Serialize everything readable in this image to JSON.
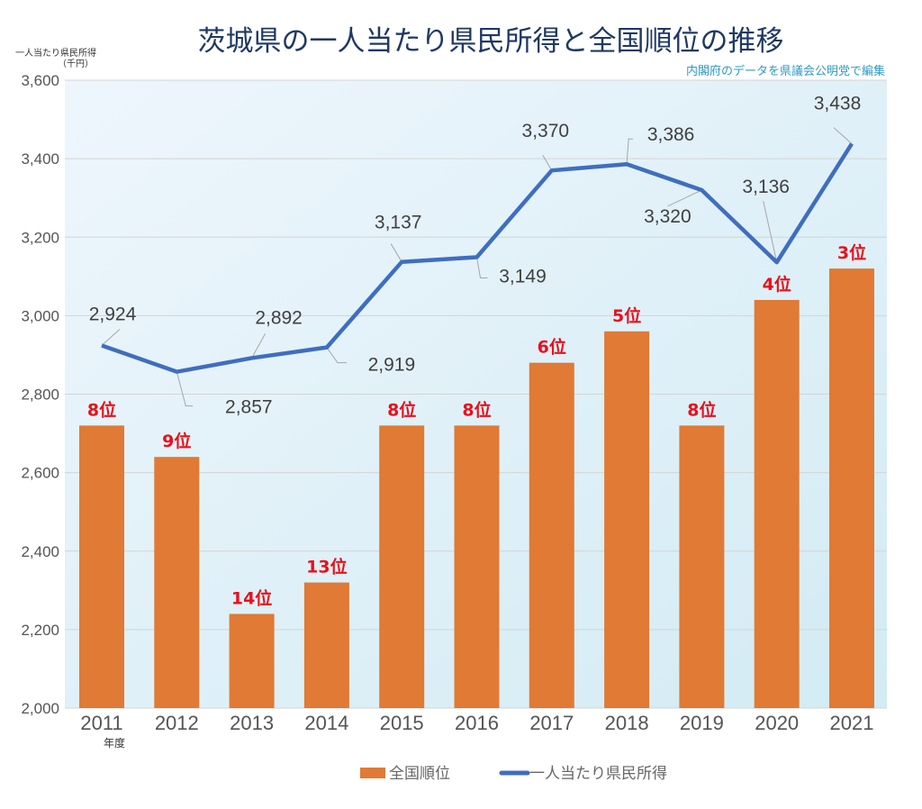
{
  "chart_data": {
    "type": "bar+line",
    "title": "茨城県の一人当たり県民所得と全国順位の推移",
    "source_note": "内閣府のデータを県議会公明党で編集",
    "ylabel": "一人当たり県民所得",
    "ylabel_unit": "（千円）",
    "xlabel": "年度",
    "ylim": [
      2000,
      3600
    ],
    "yticks": [
      2000,
      2200,
      2400,
      2600,
      2800,
      3000,
      3200,
      3400,
      3600
    ],
    "ytick_labels": [
      "2,000",
      "2,200",
      "2,400",
      "2,600",
      "2,800",
      "3,000",
      "3,200",
      "3,400",
      "3,600"
    ],
    "grid": true,
    "categories": [
      "2011",
      "2012",
      "2013",
      "2014",
      "2015",
      "2016",
      "2017",
      "2018",
      "2019",
      "2020",
      "2021"
    ],
    "series": [
      {
        "name": "全国順位",
        "kind": "bar",
        "color": "#e07a35",
        "ranks": [
          8,
          9,
          14,
          13,
          8,
          8,
          6,
          5,
          8,
          4,
          3
        ],
        "rank_labels": [
          "8位",
          "9位",
          "14位",
          "13位",
          "8位",
          "8位",
          "6位",
          "5位",
          "8位",
          "4位",
          "3位"
        ],
        "bar_values_on_axis": [
          2720,
          2640,
          2240,
          2320,
          2720,
          2720,
          2880,
          2960,
          2720,
          3040,
          3120
        ],
        "label_color": "#e8101b"
      },
      {
        "name": "一人当たり県民所得",
        "kind": "line",
        "color": "#3f6ebf",
        "values": [
          2924,
          2857,
          2892,
          2919,
          3137,
          3149,
          3370,
          3386,
          3320,
          3136,
          3438
        ],
        "value_labels": [
          "2,924",
          "2,857",
          "2,892",
          "2,919",
          "3,137",
          "3,149",
          "3,370",
          "3,386",
          "3,320",
          "3,136",
          "3,438"
        ]
      }
    ],
    "legend": {
      "placement": "bottom-center",
      "entries": [
        "全国順位",
        "一人当たり県民所得"
      ]
    }
  }
}
